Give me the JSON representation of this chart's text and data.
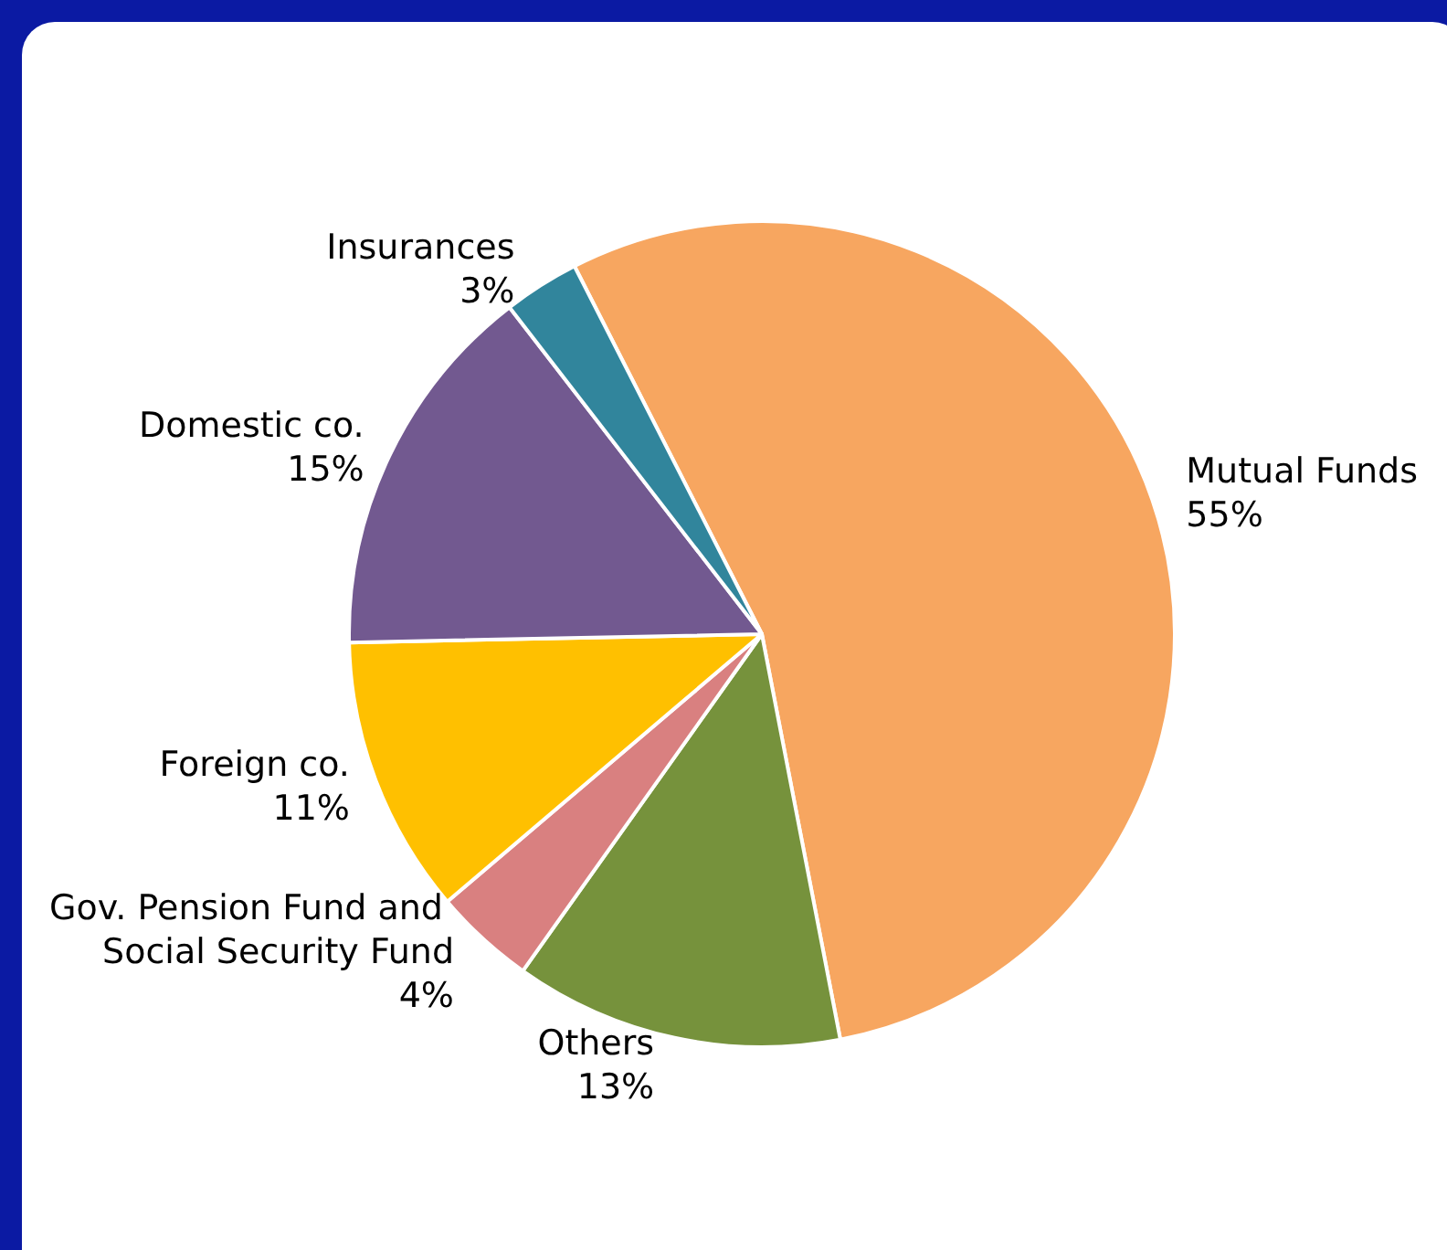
{
  "chart_data": {
    "type": "pie",
    "categories": [
      "Mutual Funds",
      "Others",
      "Gov. Pension Fund and Social Security Fund",
      "Foreign co.",
      "Domestic co.",
      "Insurances"
    ],
    "values": [
      55,
      13,
      4,
      11,
      15,
      3
    ],
    "colors": [
      "#f7a660",
      "#76923c",
      "#d98080",
      "#ffc000",
      "#725990",
      "#31859c"
    ],
    "value_labels": [
      "55%",
      "13%",
      "4%",
      "11%",
      "15%",
      "3%"
    ],
    "legend": false
  }
}
